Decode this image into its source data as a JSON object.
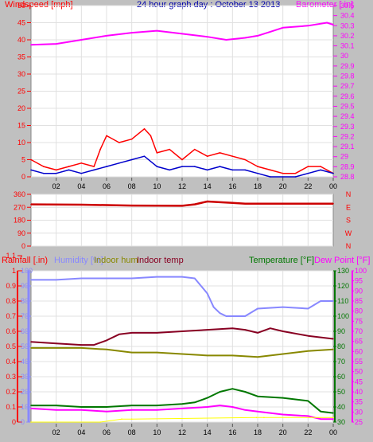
{
  "chart_data": [
    {
      "type": "line",
      "title": "24 hour graph day : October 13 2013",
      "left_axis": {
        "label": "Windspeed [mph]",
        "ylim": [
          0,
          50
        ],
        "ticks": [
          "0",
          "5",
          "10",
          "15",
          "20",
          "25",
          "30",
          "35",
          "40",
          "45",
          "50"
        ]
      },
      "right_axis": {
        "label": "Barometer [ in]",
        "ylim": [
          28.8,
          30.5
        ],
        "ticks": [
          "28.8",
          "28.9",
          "29",
          "29.1",
          "29.2",
          "29.3",
          "29.4",
          "29.5",
          "29.6",
          "29.7",
          "29.8",
          "29.9",
          "30",
          "30.1",
          "30.2",
          "30.3",
          "30.4",
          "30.5"
        ]
      },
      "x_ticks": [
        "02",
        "04",
        "06",
        "08",
        "10",
        "12",
        "14",
        "16",
        "18",
        "20",
        "22",
        "00"
      ],
      "xlim": [
        0,
        24
      ],
      "series": [
        {
          "name": "Barometer",
          "color": "#ff00ff",
          "axis": "right",
          "x": [
            0,
            2,
            4,
            6,
            8,
            10,
            12,
            14,
            15.5,
            17,
            18,
            19,
            20,
            22,
            23.5,
            24
          ],
          "values": [
            30.11,
            30.12,
            30.16,
            30.2,
            30.23,
            30.25,
            30.22,
            30.19,
            30.16,
            30.18,
            30.2,
            30.24,
            30.28,
            30.3,
            30.33,
            30.31
          ]
        },
        {
          "name": "Gust",
          "color": "#ff0000",
          "axis": "left",
          "x": [
            0,
            1,
            2,
            3,
            4,
            5,
            5.5,
            6,
            7,
            8,
            9,
            9.5,
            10,
            11,
            12,
            13,
            14,
            15,
            16,
            17,
            18,
            19,
            20,
            21,
            22,
            23,
            23.5,
            24
          ],
          "values": [
            5,
            3,
            2,
            3,
            4,
            3,
            8,
            12,
            10,
            11,
            14,
            12,
            7,
            8,
            5,
            8,
            6,
            7,
            6,
            5,
            3,
            2,
            1,
            1,
            3,
            3,
            2,
            1
          ]
        },
        {
          "name": "Average",
          "color": "#0000cc",
          "axis": "left",
          "x": [
            0,
            1,
            2,
            3,
            4,
            5,
            6,
            7,
            8,
            9,
            10,
            11,
            12,
            13,
            14,
            15,
            16,
            17,
            18,
            19,
            20,
            21,
            22,
            23,
            24
          ],
          "values": [
            2,
            1,
            1,
            2,
            1,
            2,
            3,
            4,
            5,
            6,
            3,
            2,
            3,
            3,
            2,
            3,
            2,
            2,
            1,
            0,
            0,
            0,
            1,
            2,
            1
          ]
        }
      ]
    },
    {
      "type": "line",
      "left_axis": {
        "ylim": [
          0,
          360
        ],
        "ticks": [
          "0",
          "90",
          "180",
          "270",
          "360"
        ]
      },
      "right_labels": [
        "N",
        "W",
        "S",
        "E",
        "N"
      ],
      "x_ticks": [],
      "xlim": [
        0,
        24
      ],
      "series": [
        {
          "name": "Wind direction",
          "color": "#cc0000",
          "axis": "left",
          "x": [
            0,
            4,
            8,
            12,
            13,
            14,
            15,
            16,
            17,
            18,
            20,
            22,
            24
          ],
          "values": [
            290,
            288,
            282,
            280,
            290,
            310,
            305,
            300,
            295,
            295,
            295,
            295,
            295
          ]
        }
      ]
    },
    {
      "type": "line",
      "legend": [
        "Rainfall [.in)",
        "Humidity [%]",
        "Indoor hum",
        "Indoor temp",
        "Temperature [°F]",
        "Dew Point [°F]"
      ],
      "axes": {
        "rain": {
          "ylim": [
            0,
            1
          ],
          "ticks": [
            "0",
            "0.1",
            "0.2",
            "0.3",
            "0.4",
            "0.5",
            "0.6",
            "0.7",
            "0.8",
            "0.9",
            "1",
            "1.1"
          ]
        },
        "humidity": {
          "ylim": [
            0,
            100
          ],
          "ticks": [
            "0",
            "10",
            "20",
            "30",
            "40",
            "50",
            "60",
            "70",
            "80",
            "90",
            "100"
          ]
        },
        "temperature": {
          "ylim": [
            30,
            130
          ],
          "ticks": [
            "30",
            "40",
            "50",
            "60",
            "70",
            "80",
            "90",
            "100",
            "110",
            "120",
            "130"
          ]
        },
        "dew_point": {
          "ylim": [
            25,
            100
          ],
          "ticks": [
            "25",
            "30",
            "35",
            "40",
            "45",
            "50",
            "55",
            "60",
            "65",
            "70",
            "75",
            "80",
            "85",
            "90",
            "95",
            "100"
          ]
        }
      },
      "x_ticks": [
        "02",
        "04",
        "06",
        "08",
        "10",
        "12",
        "14",
        "16",
        "18",
        "20",
        "22",
        "00"
      ],
      "xlim": [
        0,
        24
      ],
      "series": [
        {
          "name": "Humidity [%]",
          "color": "#8888ff",
          "axis": "humidity",
          "x": [
            0,
            2,
            4,
            6,
            8,
            10,
            12,
            13,
            14,
            14.5,
            15,
            15.5,
            16,
            17,
            18,
            20,
            22,
            23,
            24
          ],
          "values": [
            94,
            94,
            95,
            95,
            95,
            96,
            96,
            95,
            85,
            76,
            72,
            70,
            70,
            70,
            75,
            76,
            75,
            80,
            80
          ]
        },
        {
          "name": "Indoor temp",
          "color": "#880022",
          "axis": "temperature",
          "x": [
            0,
            2,
            4,
            5,
            6,
            7,
            8,
            10,
            12,
            14,
            16,
            17,
            18,
            19,
            20,
            22,
            24
          ],
          "values": [
            83,
            82,
            81,
            81,
            84,
            88,
            89,
            89,
            90,
            91,
            92,
            91,
            89,
            92,
            90,
            87,
            85
          ]
        },
        {
          "name": "Indoor hum",
          "color": "#888800",
          "axis": "temperature",
          "x": [
            0,
            2,
            4,
            6,
            8,
            10,
            12,
            14,
            16,
            18,
            20,
            22,
            24
          ],
          "values": [
            79,
            79,
            79,
            78,
            76,
            76,
            75,
            74,
            74,
            73,
            75,
            77,
            78
          ]
        },
        {
          "name": "Temperature [°F]",
          "color": "#007700",
          "axis": "temperature",
          "x": [
            0,
            2,
            4,
            6,
            8,
            10,
            12,
            13,
            14,
            15,
            16,
            17,
            18,
            20,
            22,
            23,
            24
          ],
          "values": [
            41,
            41,
            40,
            40,
            41,
            41,
            42,
            43,
            46,
            50,
            52,
            50,
            47,
            46,
            44,
            37,
            36
          ]
        },
        {
          "name": "Dew Point [°F]",
          "color": "#ff00ff",
          "axis": "temperature",
          "x": [
            0,
            2,
            4,
            6,
            8,
            10,
            12,
            14,
            15,
            16,
            17,
            18,
            20,
            22,
            23,
            24
          ],
          "values": [
            39,
            38,
            38,
            37,
            38,
            38,
            39,
            40,
            41,
            40,
            38,
            37,
            35,
            34,
            32,
            32
          ]
        },
        {
          "name": "Rainfall [.in)",
          "color": "#ffff00",
          "axis": "rain",
          "x": [
            0,
            5.5,
            7.2,
            8,
            17.9,
            18.5,
            24
          ],
          "values": [
            0,
            0,
            0.02,
            0.02,
            0.03,
            0.03,
            0.03
          ]
        }
      ]
    }
  ]
}
